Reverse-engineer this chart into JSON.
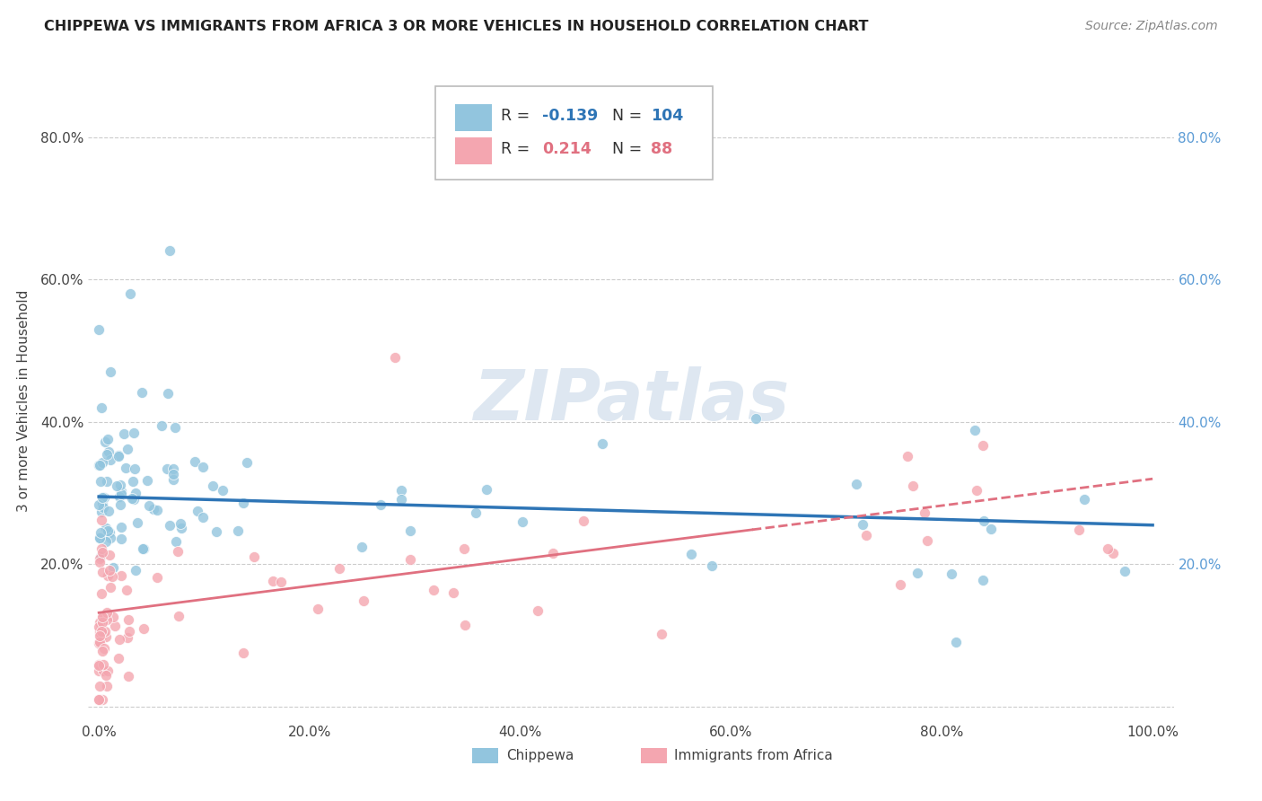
{
  "title": "CHIPPEWA VS IMMIGRANTS FROM AFRICA 3 OR MORE VEHICLES IN HOUSEHOLD CORRELATION CHART",
  "source": "Source: ZipAtlas.com",
  "ylabel": "3 or more Vehicles in Household",
  "xlabel": "",
  "xlim": [
    -0.01,
    1.02
  ],
  "ylim": [
    -0.02,
    0.88
  ],
  "x_tick_labels": [
    "0.0%",
    "20.0%",
    "40.0%",
    "60.0%",
    "80.0%",
    "100.0%"
  ],
  "x_tick_vals": [
    0.0,
    0.2,
    0.4,
    0.6,
    0.8,
    1.0
  ],
  "y_tick_labels": [
    "",
    "20.0%",
    "40.0%",
    "60.0%",
    "80.0%"
  ],
  "y_tick_vals": [
    0.0,
    0.2,
    0.4,
    0.6,
    0.8
  ],
  "chippewa_color": "#92C5DE",
  "africa_color": "#F4A6B0",
  "chippewa_line_color": "#2E75B6",
  "africa_line_color": "#E07080",
  "right_tick_color": "#5B9BD5",
  "chippewa_R": -0.139,
  "chippewa_N": 104,
  "africa_R": 0.214,
  "africa_N": 88,
  "legend_label_1": "Chippewa",
  "legend_label_2": "Immigrants from Africa",
  "watermark": "ZIPatlas",
  "background_color": "#ffffff",
  "grid_color": "#cccccc"
}
